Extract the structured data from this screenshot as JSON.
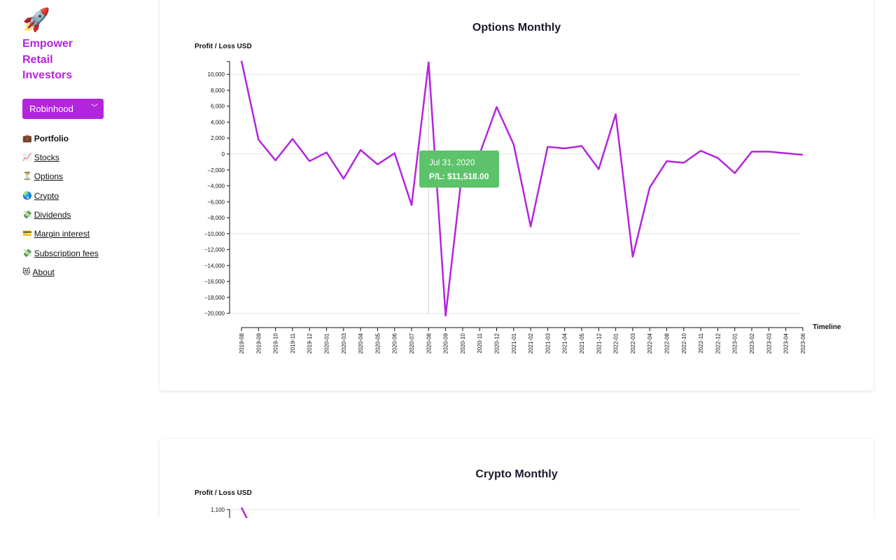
{
  "sidebar": {
    "logo_icon": "🚀",
    "brand_lines": [
      "Empower",
      "Retail",
      "Investors"
    ],
    "broker_select": {
      "value": "Robinhood"
    },
    "nav": [
      {
        "emoji": "💼",
        "label": "Portfolio",
        "active": true
      },
      {
        "emoji": "📈",
        "label": "Stocks",
        "active": false
      },
      {
        "emoji": "⏳",
        "label": "Options",
        "active": false
      },
      {
        "emoji": "🌏",
        "label": "Crypto",
        "active": false
      },
      {
        "emoji": "💸",
        "label": "Dividends",
        "active": false
      },
      {
        "emoji": "💳",
        "label": "Margin interest",
        "active": false
      },
      {
        "emoji": "💸",
        "label": "Subscription fees",
        "active": false
      },
      {
        "emoji": "😻",
        "label": "About",
        "active": false
      }
    ]
  },
  "colors": {
    "accent": "#b325dd",
    "tooltip": "#5cc36a",
    "grid": "#e6e6e6"
  },
  "tooltip": {
    "date": "Jul 31, 2020",
    "value": "P/L: $11,518.00"
  },
  "chart_data": [
    {
      "type": "line",
      "title": "Options Monthly",
      "ylabel": "Profit / Loss USD",
      "xlabel": "Timeline",
      "ylim": [
        -20000,
        11600
      ],
      "yticks": [
        10000,
        8000,
        6000,
        4000,
        2000,
        0,
        -2000,
        -4000,
        -6000,
        -8000,
        -10000,
        -12000,
        -14000,
        -16000,
        -18000,
        -20000
      ],
      "y_tick_labels": [
        "10,000",
        "8,000",
        "6,000",
        "4,000",
        "2,000",
        "0",
        "−2,000",
        "−4,000",
        "−6,000",
        "−8,000",
        "−10,000",
        "−12,000",
        "−14,000",
        "−16,000",
        "−18,000",
        "−20,000"
      ],
      "grid": true,
      "categories": [
        "2019-08",
        "2019-09",
        "2019-10",
        "2019-11",
        "2019-12",
        "2020-01",
        "2020-03",
        "2020-04",
        "2020-05",
        "2020-06",
        "2020-07",
        "2020-08",
        "2020-09",
        "2020-10",
        "2020-11",
        "2020-12",
        "2021-01",
        "2021-02",
        "2021-03",
        "2021-04",
        "2021-05",
        "2021-12",
        "2022-01",
        "2022-03",
        "2022-04",
        "2022-08",
        "2022-10",
        "2022-11",
        "2022-12",
        "2023-01",
        "2023-02",
        "2023-03",
        "2023-04",
        "2023-06"
      ],
      "values": [
        11700,
        1800,
        -800,
        1900,
        -900,
        200,
        -3100,
        500,
        -1300,
        100,
        -6400,
        11518,
        -20300,
        -1700,
        0,
        5900,
        1200,
        -9100,
        900,
        700,
        1000,
        -1900,
        5000,
        -12900,
        -4200,
        -900,
        -1100,
        400,
        -500,
        -2400,
        300,
        300,
        100,
        -100
      ],
      "series_color": "#b325dd"
    },
    {
      "type": "line",
      "title": "Crypto Monthly",
      "ylabel": "Profit / Loss USD",
      "yticks": [
        1100
      ],
      "y_tick_labels": [
        "1,100"
      ],
      "series_color": "#b325dd"
    }
  ]
}
